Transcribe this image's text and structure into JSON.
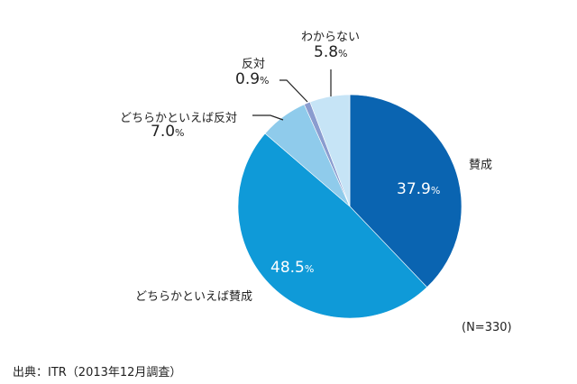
{
  "chart_data": {
    "type": "pie",
    "note_n": "(N=330)",
    "source": "出典：ITR（2013年12月調査）",
    "percent_sign": "%",
    "start": "top",
    "direction": "clockwise",
    "slices": [
      {
        "label": "賛成",
        "value": 37.9,
        "value_text": "37.9",
        "color": "#0a64b1"
      },
      {
        "label": "どちらかといえば賛成",
        "value": 48.5,
        "value_text": "48.5",
        "color": "#0f9ad8"
      },
      {
        "label": "どちらかといえば反対",
        "value": 7.0,
        "value_text": "7.0",
        "color": "#8fcbeb"
      },
      {
        "label": "反対",
        "value": 0.9,
        "value_text": "0.9",
        "color": "#8a9ccf"
      },
      {
        "label": "わからない",
        "value": 5.8,
        "value_text": "5.8",
        "color": "#c6e4f6"
      }
    ]
  }
}
